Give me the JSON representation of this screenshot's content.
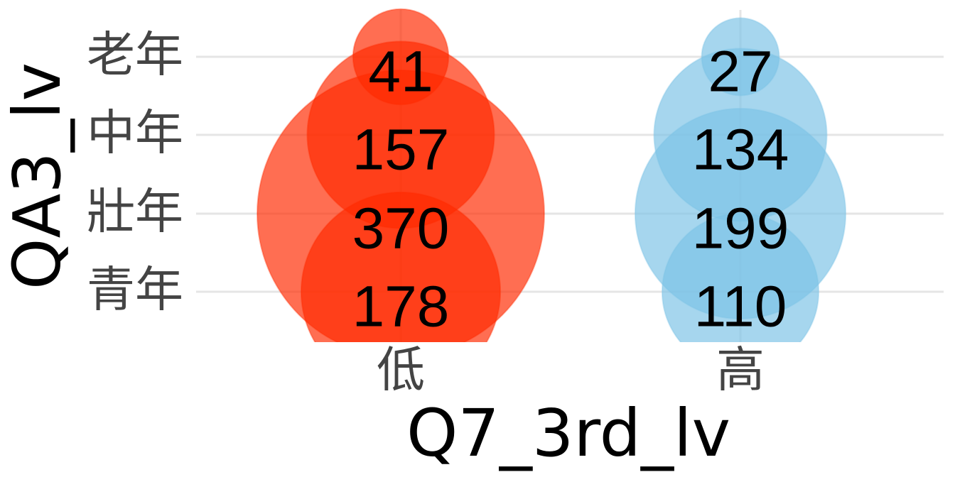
{
  "chart_data": {
    "type": "bubble",
    "xlabel": "Q7_3rd_lv",
    "ylabel": "QA3_lv",
    "x_categories": [
      "低",
      "高"
    ],
    "y_categories": [
      "青年",
      "壯年",
      "中年",
      "老年"
    ],
    "series": [
      {
        "name": "低",
        "color": "#ff2a00",
        "values": [
          {
            "x": "低",
            "y": "老年",
            "value": 41
          },
          {
            "x": "低",
            "y": "中年",
            "value": 157
          },
          {
            "x": "低",
            "y": "壯年",
            "value": 370
          },
          {
            "x": "低",
            "y": "青年",
            "value": 178
          }
        ]
      },
      {
        "name": "高",
        "color": "#7cc3e6",
        "values": [
          {
            "x": "高",
            "y": "老年",
            "value": 27
          },
          {
            "x": "高",
            "y": "中年",
            "value": 134
          },
          {
            "x": "高",
            "y": "壯年",
            "value": 199
          },
          {
            "x": "高",
            "y": "青年",
            "value": 110
          }
        ]
      }
    ],
    "grid": true,
    "legend": "none"
  }
}
